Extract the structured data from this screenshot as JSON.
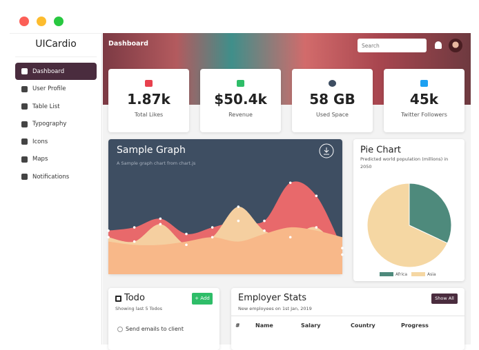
{
  "sidebar": {
    "brand": "UICardio",
    "menu": [
      "Dashboard",
      "User Profile",
      "Table List",
      "Typography",
      "Icons",
      "Maps",
      "Notifications"
    ]
  },
  "header": {
    "title": "Dashboard",
    "search_placeholder": "Search"
  },
  "stats": [
    {
      "value": "1.87k",
      "label": "Total Likes"
    },
    {
      "value": "$50.4k",
      "label": "Revenue"
    },
    {
      "value": "58 GB",
      "label": "Used Space"
    },
    {
      "value": "45k",
      "label": "Twitter Followers"
    }
  ],
  "chart_data": [
    {
      "type": "area",
      "title": "Sample Graph",
      "subtitle": "A Sample graph chart from chart.js",
      "categories": [
        null,
        null,
        null,
        null,
        null,
        null,
        null,
        null,
        null,
        null
      ],
      "ylim": [
        0,
        100
      ],
      "series": [
        {
          "color": "#e8696b",
          "values": [
            40,
            43,
            51,
            37,
            43,
            49,
            49,
            84,
            72,
            24
          ]
        },
        {
          "color": "#f5cfa0",
          "values": [
            34,
            30,
            46,
            27,
            34,
            62,
            40,
            34,
            43,
            18
          ]
        },
        {
          "color": "#f8b889",
          "values": [
            30,
            27,
            27,
            30,
            34,
            30,
            37,
            43,
            40,
            34
          ]
        }
      ]
    },
    {
      "type": "pie",
      "title": "Pie Chart",
      "subtitle": "Predicted world population (millions) in 2050",
      "categories": [
        "Africa",
        "Asia"
      ],
      "values": [
        2478,
        5267
      ],
      "colors": [
        "#4e8a7c",
        "#f5d7a3"
      ]
    }
  ],
  "todo": {
    "title": "Todo",
    "subtitle": "Showing last 5 Todos",
    "add_button": "+ Add",
    "items": [
      "Send emails to client"
    ]
  },
  "employer_stats": {
    "title": "Employer Stats",
    "subtitle": "New employees on 1st Jan, 2019",
    "button": "Show All",
    "columns": [
      "#",
      "Name",
      "Salary",
      "Country",
      "Progress"
    ]
  }
}
